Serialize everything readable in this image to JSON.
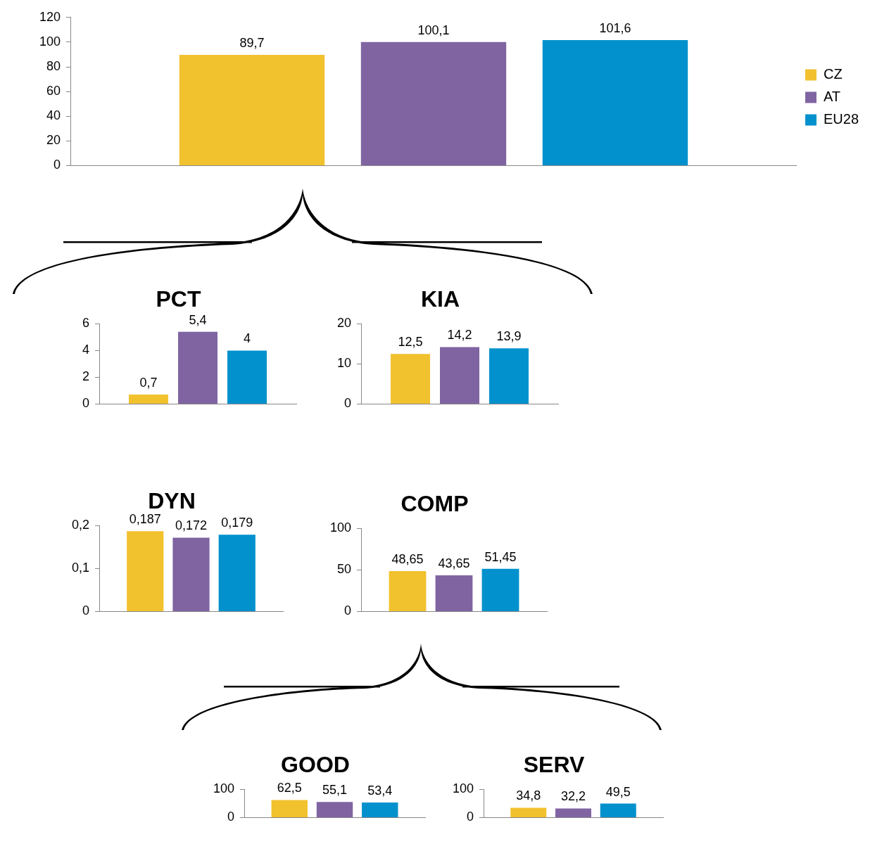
{
  "chart_data": [
    {
      "type": "bar",
      "categories": [
        null
      ],
      "legend": "right",
      "ylim": [
        0,
        120
      ],
      "yticks": [
        0,
        20,
        40,
        60,
        80,
        100,
        120
      ],
      "series": [
        {
          "name": "CZ",
          "color": "#f2c12e",
          "values": [
            89.7
          ],
          "value_labels": [
            "89,7"
          ]
        },
        {
          "name": "AT",
          "color": "#8064a2",
          "values": [
            100.1
          ],
          "value_labels": [
            "100,1"
          ]
        },
        {
          "name": "EU28",
          "color": "#0291cd",
          "values": [
            101.6
          ],
          "value_labels": [
            "101,6"
          ]
        }
      ]
    },
    {
      "type": "bar",
      "title": "PCT",
      "categories": [
        null
      ],
      "ylim": [
        0,
        6
      ],
      "yticks": [
        0,
        2,
        4,
        6
      ],
      "series": [
        {
          "color": "#f2c12e",
          "values": [
            0.7
          ],
          "value_labels": [
            "0,7"
          ]
        },
        {
          "color": "#8064a2",
          "values": [
            5.4
          ],
          "value_labels": [
            "5,4"
          ]
        },
        {
          "color": "#0291cd",
          "values": [
            4
          ],
          "value_labels": [
            "4"
          ]
        }
      ]
    },
    {
      "type": "bar",
      "title": "KIA",
      "categories": [
        null
      ],
      "ylim": [
        0,
        20
      ],
      "yticks": [
        0,
        10,
        20
      ],
      "series": [
        {
          "color": "#f2c12e",
          "values": [
            12.5
          ],
          "value_labels": [
            "12,5"
          ]
        },
        {
          "color": "#8064a2",
          "values": [
            14.2
          ],
          "value_labels": [
            "14,2"
          ]
        },
        {
          "color": "#0291cd",
          "values": [
            13.9
          ],
          "value_labels": [
            "13,9"
          ]
        }
      ]
    },
    {
      "type": "bar",
      "title": "DYN",
      "categories": [
        null
      ],
      "ylim": [
        0,
        0.2
      ],
      "yticks": [
        0,
        {
          "value": 0.1,
          "label": "0,1"
        },
        {
          "value": 0.2,
          "label": "0,2"
        }
      ],
      "series": [
        {
          "color": "#f2c12e",
          "values": [
            0.187
          ],
          "value_labels": [
            "0,187"
          ]
        },
        {
          "color": "#8064a2",
          "values": [
            0.172
          ],
          "value_labels": [
            "0,172"
          ]
        },
        {
          "color": "#0291cd",
          "values": [
            0.179
          ],
          "value_labels": [
            "0,179"
          ]
        }
      ]
    },
    {
      "type": "bar",
      "title": "COMP",
      "categories": [
        null
      ],
      "ylim": [
        0,
        100
      ],
      "yticks": [
        0,
        50,
        100
      ],
      "series": [
        {
          "color": "#f2c12e",
          "values": [
            48.65
          ],
          "value_labels": [
            "48,65"
          ]
        },
        {
          "color": "#8064a2",
          "values": [
            43.65
          ],
          "value_labels": [
            "43,65"
          ]
        },
        {
          "color": "#0291cd",
          "values": [
            51.45
          ],
          "value_labels": [
            "51,45"
          ]
        }
      ]
    },
    {
      "type": "bar",
      "title": "GOOD",
      "categories": [
        null
      ],
      "ylim": [
        0,
        100
      ],
      "yticks": [
        0,
        100
      ],
      "series": [
        {
          "color": "#f2c12e",
          "values": [
            62.5
          ],
          "value_labels": [
            "62,5"
          ]
        },
        {
          "color": "#8064a2",
          "values": [
            55.1
          ],
          "value_labels": [
            "55,1"
          ]
        },
        {
          "color": "#0291cd",
          "values": [
            53.4
          ],
          "value_labels": [
            "53,4"
          ]
        }
      ]
    },
    {
      "type": "bar",
      "title": "SERV",
      "categories": [
        null
      ],
      "ylim": [
        0,
        100
      ],
      "yticks": [
        0,
        100
      ],
      "series": [
        {
          "color": "#f2c12e",
          "values": [
            34.8
          ],
          "value_labels": [
            "34,8"
          ]
        },
        {
          "color": "#8064a2",
          "values": [
            32.2
          ],
          "value_labels": [
            "32,2"
          ]
        },
        {
          "color": "#0291cd",
          "values": [
            49.5
          ],
          "value_labels": [
            "49,5"
          ]
        }
      ]
    }
  ]
}
